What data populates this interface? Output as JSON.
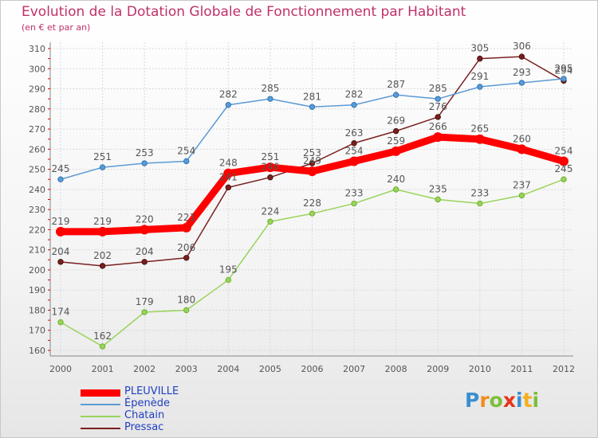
{
  "chart_data": {
    "type": "line",
    "title": "Evolution de la Dotation Globale de Fonctionnement par Habitant",
    "subtitle": "(en € et par an)",
    "xlabel": "",
    "ylabel": "",
    "categories": [
      "2000",
      "2001",
      "2002",
      "2003",
      "2004",
      "2005",
      "2006",
      "2007",
      "2008",
      "2009",
      "2010",
      "2011",
      "2012"
    ],
    "ylim": [
      160,
      310
    ],
    "yticks": [
      160,
      170,
      180,
      190,
      200,
      210,
      220,
      230,
      240,
      250,
      260,
      270,
      280,
      290,
      300,
      310
    ],
    "grid": true,
    "series": [
      {
        "name": "PLEUVILLE",
        "color": "#ff0000",
        "values": [
          219,
          219,
          220,
          221,
          248,
          251,
          249,
          254,
          259,
          266,
          265,
          260,
          254
        ]
      },
      {
        "name": "Épenède",
        "color": "#5b9bd5",
        "values": [
          245,
          251,
          253,
          254,
          282,
          285,
          281,
          282,
          287,
          285,
          291,
          293,
          295
        ]
      },
      {
        "name": "Chatain",
        "color": "#99d35a",
        "values": [
          174,
          162,
          179,
          180,
          195,
          224,
          228,
          233,
          240,
          235,
          233,
          237,
          245
        ]
      },
      {
        "name": "Pressac",
        "color": "#7a2020",
        "values": [
          204,
          202,
          204,
          206,
          241,
          246,
          253,
          263,
          269,
          276,
          305,
          306,
          294
        ]
      }
    ]
  },
  "logo": {
    "letters": [
      "P",
      "r",
      "o",
      "x",
      "i",
      "t",
      "i"
    ],
    "colors": [
      "#3a8fd0",
      "#f28c1e",
      "#7cbf3a",
      "#e8341c",
      "#3a8fd0",
      "#f2b01e",
      "#7cbf3a"
    ]
  }
}
